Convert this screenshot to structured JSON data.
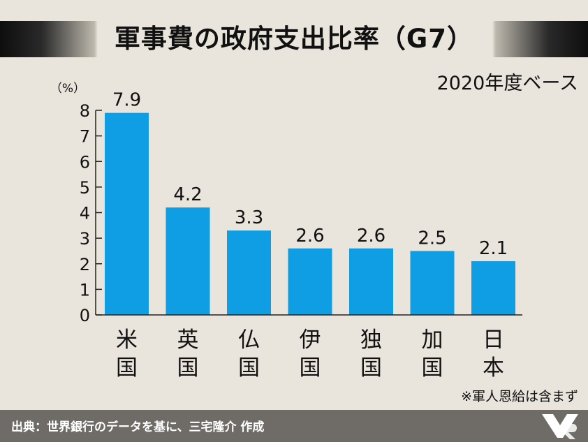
{
  "header": {
    "title": "軍事費の政府支出比率（G7）",
    "subtitle": "2020年度ベース"
  },
  "note": "※軍人恩給は含まず",
  "footer": {
    "source": "出典：世界銀行のデータを基に、三宅隆介 作成"
  },
  "colors": {
    "bar": "#0f9ee3",
    "background": "#e9e5dc",
    "footer_bg": "#6f6c68"
  },
  "chart_data": {
    "type": "bar",
    "title": "軍事費の政府支出比率（G7）",
    "subtitle": "2020年度ベース",
    "unit": "（%）",
    "categories": [
      "米国",
      "英国",
      "仏国",
      "伊国",
      "独国",
      "加国",
      "日本"
    ],
    "values": [
      7.9,
      4.2,
      3.3,
      2.6,
      2.6,
      2.5,
      2.1
    ],
    "data_labels": [
      "7.9",
      "4.2",
      "3.3",
      "2.6",
      "2.6",
      "2.5",
      "2.1"
    ],
    "yticks": [
      "0",
      "1",
      "2",
      "3",
      "4",
      "5",
      "6",
      "7",
      "8"
    ],
    "ylim": [
      0,
      8
    ],
    "grid": false,
    "legend": "none"
  }
}
